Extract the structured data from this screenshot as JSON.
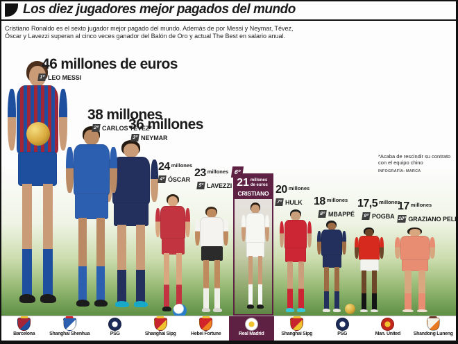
{
  "palette": {
    "maroon": "#5e2144",
    "ink": "#1b1b1b",
    "pitch_green": "#5d8f45"
  },
  "header": {
    "title": "Los diez jugadores mejor pagados del mundo",
    "intro_line1": "Cristiano Ronaldo es el sexto jugador mejor pagado del mundo. Además de por Messi y Neymar, Tévez,",
    "intro_line2": "Óscar y Lavezzi superan al cinco veces ganador del Balón de Oro y actual The Best en salario anual."
  },
  "note": {
    "line1": "*Acaba de rescindir su contrato",
    "line2": "con el equipo chino",
    "credit": "INFOGRAFÍA: MARCA"
  },
  "players": [
    {
      "rank": "1º",
      "name": "LEO MESSI",
      "amount": "46",
      "unit": "millones de euros",
      "kit": {
        "shirt": "#1d4f9e",
        "shirt2": "#a32638",
        "shorts": "#1d4f9e",
        "socks": "#1d4f9e",
        "skin": "#c99b76",
        "hair": "#4a2f1d",
        "shoe": "#1b1b1b"
      }
    },
    {
      "rank": "2º",
      "name": "CARLOS TÉVEZ*",
      "amount": "38",
      "unit": "millones",
      "kit": {
        "shirt": "#2d5fb0",
        "shorts": "#2d5fb0",
        "socks": "#2d5fb0",
        "skin": "#b98a63",
        "hair": "#23190f",
        "shoe": "#1b1b1b"
      }
    },
    {
      "rank": "3º",
      "name": "NEYMAR",
      "amount": "36",
      "unit": "millones",
      "kit": {
        "shirt": "#232f5c",
        "shorts": "#232f5c",
        "socks": "#232f5c",
        "skin": "#c99b76",
        "hair": "#241a12",
        "shoe": "#18a8c8"
      }
    },
    {
      "rank": "4º",
      "name": "ÓSCAR",
      "amount": "24",
      "unit": "millones",
      "kit": {
        "shirt": "#c23540",
        "shorts": "#c23540",
        "socks": "#c23540",
        "skin": "#d8a77f",
        "hair": "#2f2415",
        "shoe": "#1b1b1b"
      }
    },
    {
      "rank": "5º",
      "name": "LAVEZZI",
      "amount": "23",
      "unit": "millones",
      "kit": {
        "shirt": "#f4f3ef",
        "shorts": "#2b2b2b",
        "socks": "#efefea",
        "skin": "#c08a5f",
        "hair": "#3b2a1a",
        "shoe": "#d8d8d0"
      }
    },
    {
      "rank": "6º",
      "name": "CRISTIANO",
      "amount": "21",
      "unit": "millones de euros",
      "kit": {
        "shirt": "#f6f6f2",
        "shorts": "#f6f6f2",
        "socks": "#f6f6f2",
        "skin": "#c99b76",
        "hair": "#241a12",
        "shoe": "#1b1b1b"
      }
    },
    {
      "rank": "7º",
      "name": "HULK",
      "amount": "20",
      "unit": "millones",
      "kit": {
        "shirt": "#cc2533",
        "shorts": "#cc2533",
        "socks": "#cc2533",
        "skin": "#caa07c",
        "hair": "#1d1d1d",
        "shoe": "#35c8d8"
      }
    },
    {
      "rank": "8º",
      "name": "MBAPPÉ",
      "amount": "18",
      "unit": "millones",
      "kit": {
        "shirt": "#232f5c",
        "shorts": "#232f5c",
        "socks": "#232f5c",
        "skin": "#9c6b43",
        "hair": "#1d1d1d",
        "shoe": "#e8e8e0"
      }
    },
    {
      "rank": "9º",
      "name": "POGBA",
      "amount": "17,5",
      "unit": "millones",
      "kit": {
        "shirt": "#d62a1e",
        "shorts": "#f2f2ee",
        "socks": "#141414",
        "skin": "#6b4628",
        "hair": "#141414",
        "shoe": "#e8e8e0"
      }
    },
    {
      "rank": "10º",
      "name": "GRAZIANO PELLÈ",
      "amount": "17",
      "unit": "millones",
      "kit": {
        "shirt": "#e98d72",
        "shorts": "#e98d72",
        "socks": "#e98d72",
        "skin": "#d8a77f",
        "hair": "#26201a",
        "shoe": "#f0ded0"
      }
    }
  ],
  "clubs": [
    {
      "name": "Barcelona",
      "logo": {
        "c1": "#a32638",
        "c2": "#1d4f9e",
        "c3": "#f0c230"
      }
    },
    {
      "name": "Shanghai Shenhua",
      "logo": {
        "c1": "#2d5fb0",
        "c2": "#ffffff",
        "c3": "#d2222a"
      }
    },
    {
      "name": "PSG",
      "logo": {
        "c1": "#1b2a56",
        "c2": "#ffffff",
        "c3": "#d2222a"
      }
    },
    {
      "name": "Shanghai Sipg",
      "logo": {
        "c1": "#c8242e",
        "c2": "#f0c230",
        "c3": "#f0c230"
      }
    },
    {
      "name": "Hebei Fortune",
      "logo": {
        "c1": "#d2222a",
        "c2": "#f08020",
        "c3": "#f0c230"
      }
    },
    {
      "name": "Real Madrid",
      "logo": {
        "c1": "#ffffff",
        "c2": "#f0c230",
        "c3": "#f0c230"
      }
    },
    {
      "name": "Shanghai Sipg",
      "logo": {
        "c1": "#c8242e",
        "c2": "#f0c230",
        "c3": "#f0c230"
      }
    },
    {
      "name": "PSG",
      "logo": {
        "c1": "#1b2a56",
        "c2": "#ffffff",
        "c3": "#d2222a"
      }
    },
    {
      "name": "Man. United",
      "logo": {
        "c1": "#c4261d",
        "c2": "#f0c230",
        "c3": "#1b1b1b"
      }
    },
    {
      "name": "Shandong Luneng",
      "logo": {
        "c1": "#f5f2ea",
        "c2": "#e87820",
        "c3": "#6b3a2a"
      }
    }
  ],
  "chart_data": {
    "type": "bar",
    "title": "Los diez jugadores mejor pagados del mundo",
    "categories": [
      "Leo Messi",
      "Carlos Tévez",
      "Neymar",
      "Óscar",
      "Lavezzi",
      "Cristiano Ronaldo",
      "Hulk",
      "Mbappé",
      "Pogba",
      "Graziano Pellè"
    ],
    "values": [
      46,
      38,
      36,
      24,
      23,
      21,
      20,
      18,
      17.5,
      17
    ],
    "unit": "millones de euros (salario anual)",
    "clubs": [
      "Barcelona",
      "Shanghai Shenhua",
      "PSG",
      "Shanghai Sipg",
      "Hebei Fortune",
      "Real Madrid",
      "Shanghai Sipg",
      "PSG",
      "Man. United",
      "Shandong Luneng"
    ],
    "annotations": [
      "*Acaba de rescindir su contrato con el equipo chino"
    ],
    "legend_position": "none",
    "grid": false
  }
}
